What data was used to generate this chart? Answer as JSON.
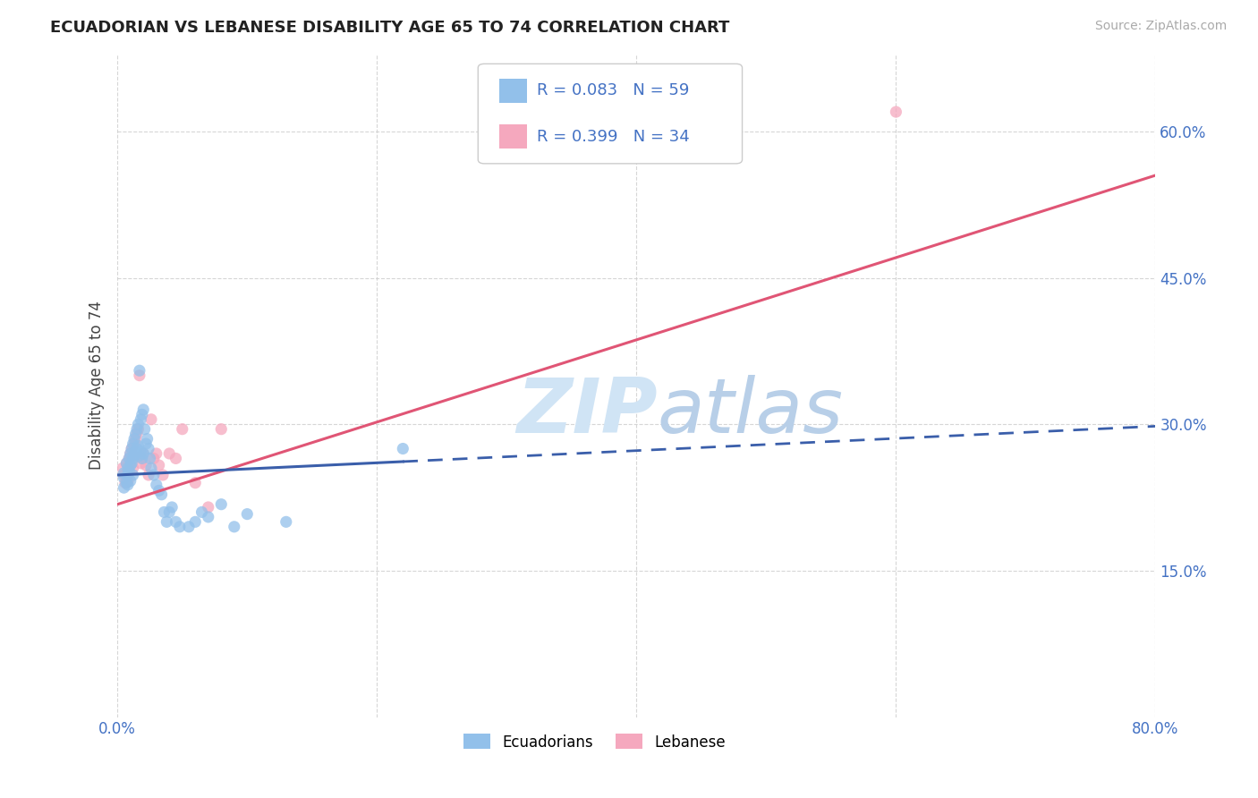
{
  "title": "ECUADORIAN VS LEBANESE DISABILITY AGE 65 TO 74 CORRELATION CHART",
  "source": "Source: ZipAtlas.com",
  "ylabel": "Disability Age 65 to 74",
  "xlim": [
    0.0,
    0.8
  ],
  "ylim": [
    0.0,
    0.68
  ],
  "xticks": [
    0.0,
    0.2,
    0.4,
    0.6,
    0.8
  ],
  "xticklabels": [
    "0.0%",
    "",
    "",
    "",
    "80.0%"
  ],
  "yticks": [
    0.15,
    0.3,
    0.45,
    0.6
  ],
  "yticklabels": [
    "15.0%",
    "30.0%",
    "45.0%",
    "60.0%"
  ],
  "R_ecu": 0.083,
  "N_ecu": 59,
  "R_leb": 0.399,
  "N_leb": 34,
  "ecuadorian_color": "#92c0ea",
  "lebanese_color": "#f5a8be",
  "trend_ecu_color": "#3a5eaa",
  "trend_leb_color": "#e05575",
  "watermark_color": "#d0e4f5",
  "legend_label_ecu": "Ecuadorians",
  "legend_label_leb": "Lebanese",
  "ecu_points_x": [
    0.005,
    0.005,
    0.005,
    0.007,
    0.007,
    0.008,
    0.008,
    0.008,
    0.009,
    0.009,
    0.01,
    0.01,
    0.01,
    0.011,
    0.011,
    0.012,
    0.012,
    0.012,
    0.013,
    0.013,
    0.014,
    0.014,
    0.015,
    0.015,
    0.016,
    0.016,
    0.017,
    0.017,
    0.018,
    0.018,
    0.019,
    0.019,
    0.02,
    0.02,
    0.021,
    0.022,
    0.023,
    0.024,
    0.025,
    0.026,
    0.028,
    0.03,
    0.032,
    0.034,
    0.036,
    0.038,
    0.04,
    0.042,
    0.045,
    0.048,
    0.055,
    0.06,
    0.065,
    0.07,
    0.08,
    0.09,
    0.1,
    0.13,
    0.22
  ],
  "ecu_points_y": [
    0.25,
    0.245,
    0.235,
    0.26,
    0.24,
    0.255,
    0.248,
    0.238,
    0.265,
    0.252,
    0.27,
    0.258,
    0.242,
    0.275,
    0.26,
    0.28,
    0.265,
    0.248,
    0.285,
    0.268,
    0.29,
    0.272,
    0.295,
    0.275,
    0.3,
    0.278,
    0.355,
    0.268,
    0.305,
    0.272,
    0.31,
    0.265,
    0.315,
    0.27,
    0.295,
    0.28,
    0.285,
    0.275,
    0.265,
    0.255,
    0.248,
    0.238,
    0.232,
    0.228,
    0.21,
    0.2,
    0.21,
    0.215,
    0.2,
    0.195,
    0.195,
    0.2,
    0.21,
    0.205,
    0.218,
    0.195,
    0.208,
    0.2,
    0.275
  ],
  "leb_points_x": [
    0.004,
    0.005,
    0.006,
    0.007,
    0.008,
    0.008,
    0.009,
    0.01,
    0.01,
    0.011,
    0.012,
    0.012,
    0.013,
    0.014,
    0.015,
    0.016,
    0.017,
    0.018,
    0.019,
    0.02,
    0.022,
    0.024,
    0.026,
    0.028,
    0.03,
    0.032,
    0.035,
    0.04,
    0.045,
    0.05,
    0.06,
    0.07,
    0.08,
    0.6
  ],
  "leb_points_y": [
    0.255,
    0.248,
    0.24,
    0.26,
    0.252,
    0.242,
    0.265,
    0.27,
    0.258,
    0.275,
    0.268,
    0.255,
    0.28,
    0.285,
    0.29,
    0.295,
    0.35,
    0.26,
    0.265,
    0.27,
    0.258,
    0.248,
    0.305,
    0.265,
    0.27,
    0.258,
    0.248,
    0.27,
    0.265,
    0.295,
    0.24,
    0.215,
    0.295,
    0.62
  ],
  "trend_leb_x0": 0.0,
  "trend_leb_y0": 0.218,
  "trend_leb_x1": 0.8,
  "trend_leb_y1": 0.555,
  "trend_ecu_x0": 0.0,
  "trend_ecu_y0": 0.248,
  "trend_ecu_x1": 0.8,
  "trend_ecu_y1": 0.298,
  "trend_ecu_solid_end": 0.22,
  "grid_color": "#cccccc",
  "grid_linestyle": "--",
  "background_color": "#ffffff"
}
